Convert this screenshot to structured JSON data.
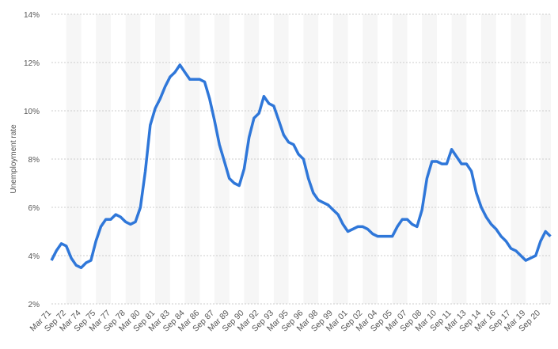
{
  "chart_data": {
    "type": "line",
    "y_label": "Unemployment rate",
    "categories": [
      "Mar 71",
      null,
      null,
      "Sep 72",
      null,
      null,
      "Mar 74",
      null,
      null,
      "Sep 75",
      null,
      null,
      "Mar 77",
      null,
      null,
      "Sep 78",
      null,
      null,
      "Mar 80",
      null,
      null,
      "Sep 81",
      null,
      null,
      "Mar 83",
      null,
      null,
      "Sep 84",
      null,
      null,
      "Mar 86",
      null,
      null,
      "Sep 87",
      null,
      null,
      "Mar 89",
      null,
      null,
      "Sep 90",
      null,
      null,
      "Mar 92",
      null,
      null,
      "Sep 93",
      null,
      null,
      "Mar 95",
      null,
      null,
      "Sep 96",
      null,
      null,
      "Mar 98",
      null,
      null,
      "Sep 99",
      null,
      null,
      "Mar 01",
      null,
      null,
      "Sep 02",
      null,
      null,
      "Mar 04",
      null,
      null,
      "Sep 05",
      null,
      null,
      "Mar 07",
      null,
      null,
      "Sep 08",
      null,
      null,
      "Mar 10",
      null,
      null,
      "Sep 11",
      null,
      null,
      "Mar 13",
      null,
      null,
      "Sep 14",
      null,
      null,
      "Mar 16",
      null,
      null,
      "Sep 17",
      null,
      null,
      "Mar 19",
      null,
      null,
      "Sep 20",
      null,
      null
    ],
    "series": [
      {
        "color": "#2f77d9",
        "values": [
          3.8,
          4.2,
          4.5,
          4.4,
          3.9,
          3.6,
          3.5,
          3.7,
          3.8,
          4.6,
          5.2,
          5.5,
          5.5,
          5.7,
          5.6,
          5.4,
          5.3,
          5.4,
          6.0,
          7.5,
          9.4,
          10.1,
          10.5,
          11.0,
          11.4,
          11.6,
          11.9,
          11.6,
          11.3,
          11.3,
          11.3,
          11.2,
          10.5,
          9.6,
          8.6,
          7.9,
          7.2,
          7.0,
          6.9,
          7.6,
          8.9,
          9.7,
          9.9,
          10.6,
          10.3,
          10.2,
          9.6,
          9.0,
          8.7,
          8.6,
          8.2,
          8.0,
          7.2,
          6.6,
          6.3,
          6.2,
          6.1,
          5.9,
          5.7,
          5.3,
          5.0,
          5.1,
          5.2,
          5.2,
          5.1,
          4.9,
          4.8,
          4.8,
          4.8,
          4.8,
          5.2,
          5.5,
          5.5,
          5.3,
          5.2,
          5.9,
          7.2,
          7.9,
          7.9,
          7.8,
          7.8,
          8.4,
          8.1,
          7.8,
          7.8,
          7.5,
          6.6,
          6.0,
          5.6,
          5.3,
          5.1,
          4.8,
          4.6,
          4.3,
          4.2,
          4.0,
          3.8,
          3.9,
          4.0,
          4.6,
          5.0,
          4.8
        ]
      }
    ],
    "ylim": [
      2,
      14
    ],
    "yticks": [
      {
        "value": 2,
        "label": "2%"
      },
      {
        "value": 4,
        "label": "4%"
      },
      {
        "value": 6,
        "label": "6%"
      },
      {
        "value": 8,
        "label": "8%"
      },
      {
        "value": 10,
        "label": "10%"
      },
      {
        "value": 12,
        "label": "12%"
      },
      {
        "value": 14,
        "label": "14%"
      }
    ],
    "grid": true
  }
}
